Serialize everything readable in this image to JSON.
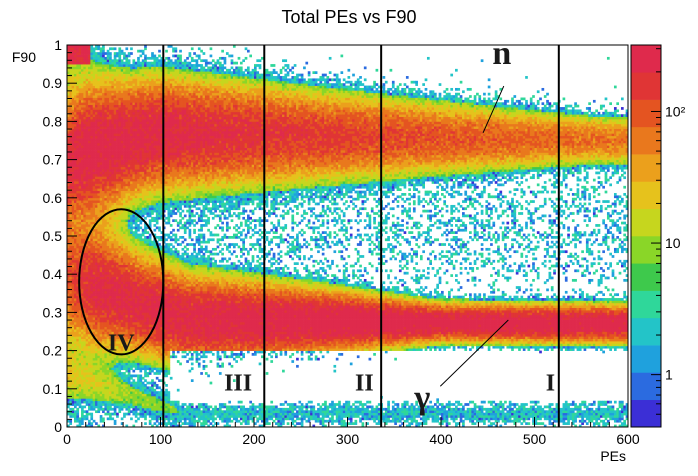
{
  "chart_data": {
    "type": "heatmap",
    "title": "Total PEs vs F90",
    "xlabel": "PEs",
    "ylabel": "F90",
    "xlim": [
      0,
      600
    ],
    "ylim": [
      0,
      1
    ],
    "x_ticks": [
      0,
      100,
      200,
      300,
      400,
      500,
      600
    ],
    "x_tick_labels": [
      "0",
      "100",
      "200",
      "300",
      "400",
      "500",
      "600"
    ],
    "y_ticks": [
      0,
      0.1,
      0.2,
      0.3,
      0.4,
      0.5,
      0.6,
      0.7,
      0.8,
      0.9,
      1
    ],
    "y_tick_labels": [
      "0",
      "0.1",
      "0.2",
      "0.3",
      "0.4",
      "0.5",
      "0.6",
      "0.7",
      "0.8",
      "0.9",
      "1"
    ],
    "color_scale": {
      "log": true,
      "min": 0.4,
      "max": 320,
      "ticks": [
        1,
        10,
        100
      ],
      "tick_labels": [
        "1",
        "10",
        "10²"
      ],
      "colors": [
        "#3b2fd6",
        "#2b6be0",
        "#1fa1dd",
        "#23c4c8",
        "#2fd79a",
        "#3ec94c",
        "#8ad628",
        "#c6d61e",
        "#e6c21c",
        "#eba01c",
        "#e9781d",
        "#e45421",
        "#e03535",
        "#df2a4c"
      ]
    },
    "bands": [
      {
        "label": "n",
        "description_hidden": false,
        "f90_center_start": 0.68,
        "f90_center_end": 0.79,
        "pe_start": 15,
        "pe_end": 600
      },
      {
        "label": "γ",
        "f90_center_start": 0.39,
        "f90_center_end": 0.28,
        "pe_start": 15,
        "pe_end": 600
      },
      {
        "f90_center_start": 0.14,
        "f90_center_end": 0.03,
        "pe_start": 0,
        "pe_end": 120
      }
    ],
    "region_boundaries_pe": [
      103,
      211,
      336,
      526
    ],
    "regions": [
      {
        "label": "IV",
        "pe": 58,
        "f90": 0.2
      },
      {
        "label": "III",
        "pe": 183,
        "f90": 0.095
      },
      {
        "label": "II",
        "pe": 318,
        "f90": 0.095
      },
      {
        "label": "I",
        "pe": 517,
        "f90": 0.095
      }
    ],
    "ellipse": {
      "pe_center": 58,
      "f90_center": 0.38,
      "pe_radius": 45,
      "f90_radius": 0.19
    },
    "annotations": [
      {
        "text": "n",
        "pe": 465,
        "f90": 0.95,
        "arrow_to_pe": 445,
        "arrow_to_f90": 0.77
      },
      {
        "text": "γ",
        "pe": 380,
        "f90": 0.07,
        "arrow_to_pe": 472,
        "arrow_to_f90": 0.28
      }
    ]
  }
}
